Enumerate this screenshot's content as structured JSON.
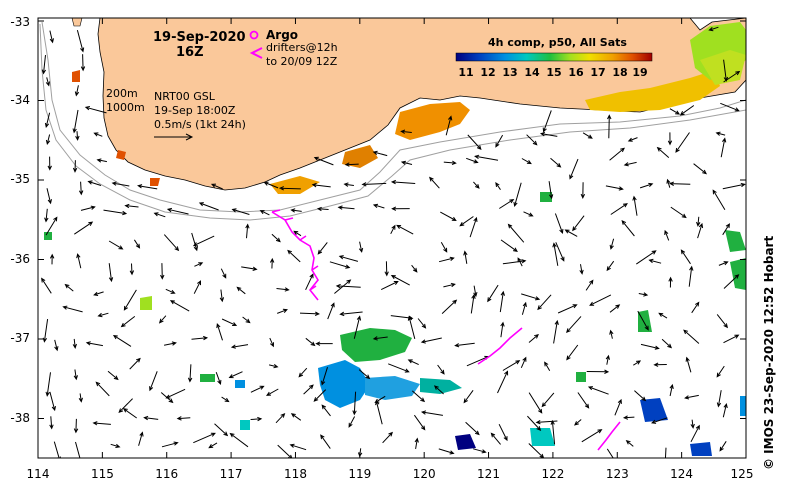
{
  "header": {
    "date": "19-Sep-2020",
    "time": "16Z"
  },
  "legend": {
    "argo_label": "Argo",
    "drifters_line1": "drifters@12h",
    "drifters_line2": "to 20/09 12Z",
    "depth_200": "200m",
    "depth_1000": "1000m",
    "product_line1": "NRT00 GSL",
    "product_line2": "19-Sep 18:00Z",
    "scale_label": "0.5m/s (1kt 24h)"
  },
  "colorbar": {
    "title": "4h comp, p50, All Sats",
    "ticks": [
      "11",
      "12",
      "13",
      "14",
      "15",
      "16",
      "17",
      "18",
      "19"
    ],
    "colors": [
      "#000080",
      "#0040c0",
      "#0090e0",
      "#00c8c0",
      "#20c040",
      "#a0e020",
      "#f0e000",
      "#f0a000",
      "#e05000",
      "#a00000"
    ]
  },
  "axes": {
    "x_ticks": [
      "114",
      "115",
      "116",
      "117",
      "118",
      "119",
      "120",
      "121",
      "122",
      "123",
      "124",
      "125"
    ],
    "y_ticks": [
      "-33",
      "-34",
      "-35",
      "-36",
      "-37",
      "-38"
    ]
  },
  "credit": "© IMOS 23-Sep-2020 12:52 Hobart",
  "colors": {
    "land": "#fac89a",
    "drifter": "#ff00ff",
    "contour": "#a0a0a0"
  }
}
